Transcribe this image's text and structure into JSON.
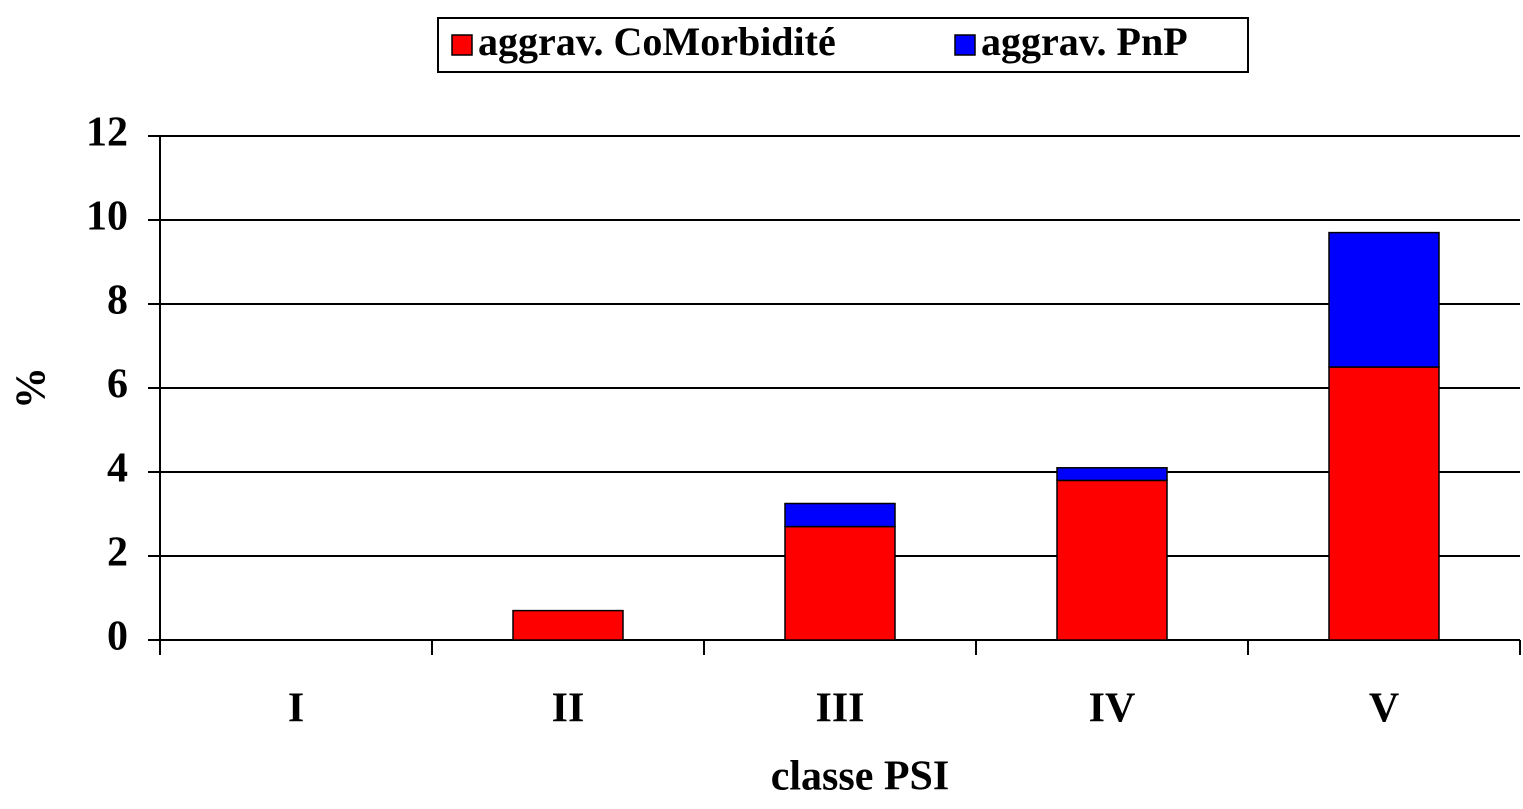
{
  "chart_data": {
    "type": "stacked-bar",
    "categories": [
      "I",
      "II",
      "III",
      "IV",
      "V"
    ],
    "series": [
      {
        "name": "aggrav. CoMorbidité",
        "color": "#ff0000",
        "values": [
          0,
          0.7,
          2.7,
          3.8,
          6.5
        ]
      },
      {
        "name": "aggrav. PnP",
        "color": "#0000ff",
        "values": [
          0,
          0,
          0.55,
          0.3,
          3.2
        ]
      }
    ],
    "ylim": [
      0,
      12
    ],
    "yticks": [
      0,
      2,
      4,
      6,
      8,
      10,
      12
    ],
    "grid": true,
    "y_label": "%",
    "x_label": "classe PSI",
    "legend": "top"
  }
}
